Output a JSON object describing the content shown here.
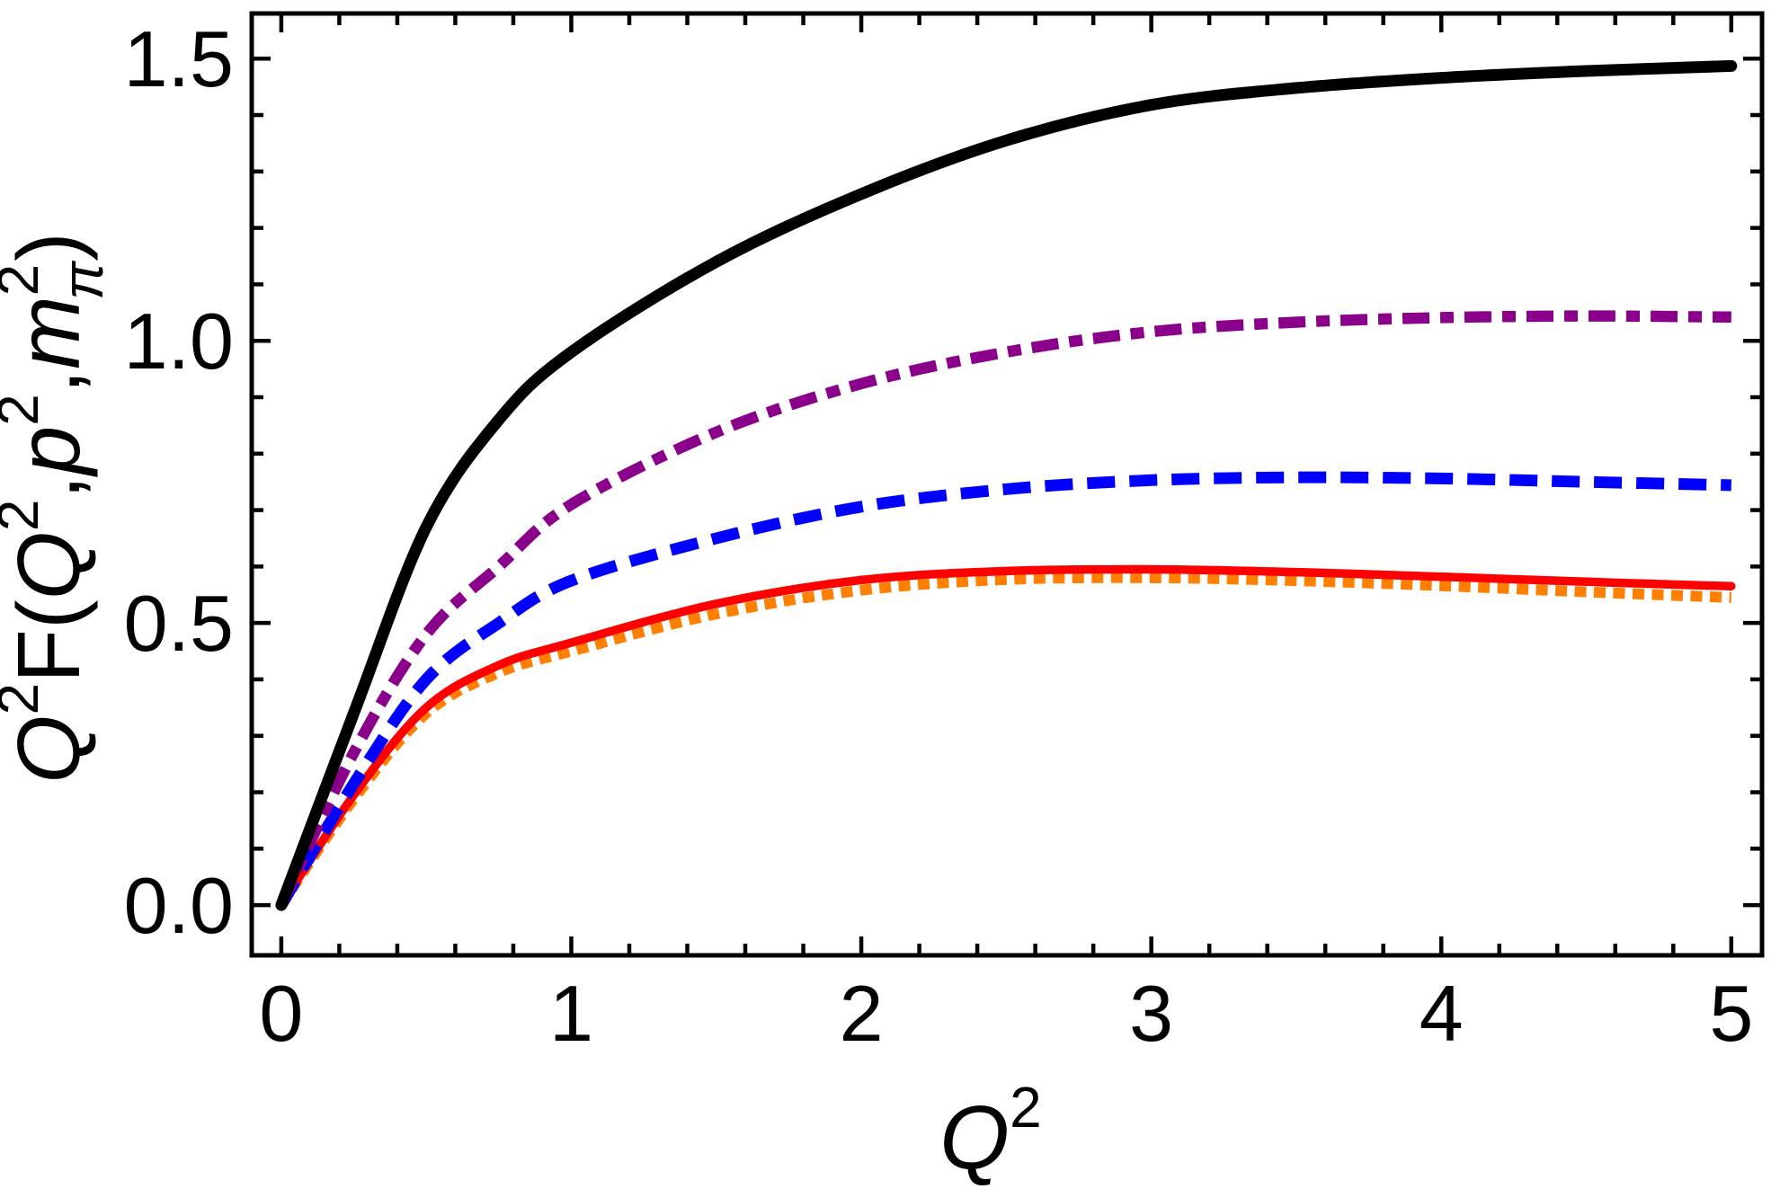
{
  "page": {
    "background": "#ffffff"
  },
  "chart_data": {
    "type": "line",
    "title": "",
    "xlabel": "Q²",
    "ylabel": "Q²F(Q²,p²,m²π)",
    "xlabel_rich": [
      {
        "t": "Q",
        "italic": true
      },
      {
        "t": "2",
        "style": "sup"
      }
    ],
    "ylabel_rich": [
      {
        "t": "Q",
        "italic": true
      },
      {
        "t": "2",
        "style": "sup"
      },
      {
        "t": "F("
      },
      {
        "t": "Q",
        "italic": true
      },
      {
        "t": "2",
        "style": "sup"
      },
      {
        "t": ","
      },
      {
        "t": "p",
        "italic": true
      },
      {
        "t": "2",
        "style": "sup"
      },
      {
        "t": ","
      },
      {
        "t": "m",
        "italic": true
      },
      {
        "t": "2",
        "style": "sup"
      },
      {
        "t": "π",
        "italic": true,
        "style": "sub",
        "stack": true
      },
      {
        "t": ")"
      }
    ],
    "xlim": [
      -0.102,
      5.106
    ],
    "ylim": [
      -0.089,
      1.58
    ],
    "grid": false,
    "legend": "none",
    "frame_color": "#000000",
    "x_ticks": {
      "major": [
        {
          "v": 0,
          "label": "0"
        },
        {
          "v": 1,
          "label": "1"
        },
        {
          "v": 2,
          "label": "2"
        },
        {
          "v": 3,
          "label": "3"
        },
        {
          "v": 4,
          "label": "4"
        },
        {
          "v": 5,
          "label": "5"
        }
      ],
      "minor": [
        0.2,
        0.4,
        0.6,
        0.8,
        1.2,
        1.4,
        1.6,
        1.8,
        2.2,
        2.4,
        2.6,
        2.8,
        3.2,
        3.4,
        3.6,
        3.8,
        4.2,
        4.4,
        4.6,
        4.8
      ]
    },
    "y_ticks": {
      "major": [
        {
          "v": 0,
          "label": "0.0"
        },
        {
          "v": 0.5,
          "label": "0.5"
        },
        {
          "v": 1,
          "label": "1.0"
        },
        {
          "v": 1.5,
          "label": "1.5"
        }
      ],
      "minor": [
        0.1,
        0.2,
        0.3,
        0.4,
        0.6,
        0.7,
        0.8,
        0.9,
        1.1,
        1.2,
        1.3,
        1.4
      ]
    },
    "x": [
      0,
      0.25,
      0.5,
      0.75,
      1,
      1.5,
      2,
      2.5,
      3,
      3.5,
      4,
      4.5,
      5
    ],
    "series": [
      {
        "name": "black-solid",
        "color": "#000000",
        "style": "solid",
        "width": 13,
        "values": [
          0,
          0.34,
          0.67,
          0.86,
          0.98,
          1.14,
          1.26,
          1.355,
          1.418,
          1.448,
          1.466,
          1.478,
          1.487
        ]
      },
      {
        "name": "purple-dotdashed",
        "color": "#8B008B",
        "style": "dotdash",
        "width": 12.5,
        "values": [
          0,
          0.27,
          0.48,
          0.6,
          0.71,
          0.838,
          0.924,
          0.98,
          1.016,
          1.033,
          1.041,
          1.044,
          1.042
        ]
      },
      {
        "name": "blue-dashed",
        "color": "#0000FF",
        "style": "dashed",
        "width": 13,
        "values": [
          0,
          0.215,
          0.4,
          0.5,
          0.575,
          0.65,
          0.706,
          0.737,
          0.753,
          0.758,
          0.756,
          0.75,
          0.744
        ]
      },
      {
        "name": "red-solid",
        "color": "#FF0000",
        "style": "solid",
        "width": 9.5,
        "values": [
          0,
          0.195,
          0.35,
          0.425,
          0.465,
          0.534,
          0.576,
          0.592,
          0.595,
          0.59,
          0.582,
          0.573,
          0.565
        ]
      },
      {
        "name": "orange-dotted",
        "color": "#FF8000",
        "style": "dotted",
        "width": 12,
        "values": [
          0,
          0.188,
          0.34,
          0.412,
          0.45,
          0.516,
          0.558,
          0.577,
          0.58,
          0.575,
          0.566,
          0.555,
          0.545
        ]
      }
    ]
  }
}
